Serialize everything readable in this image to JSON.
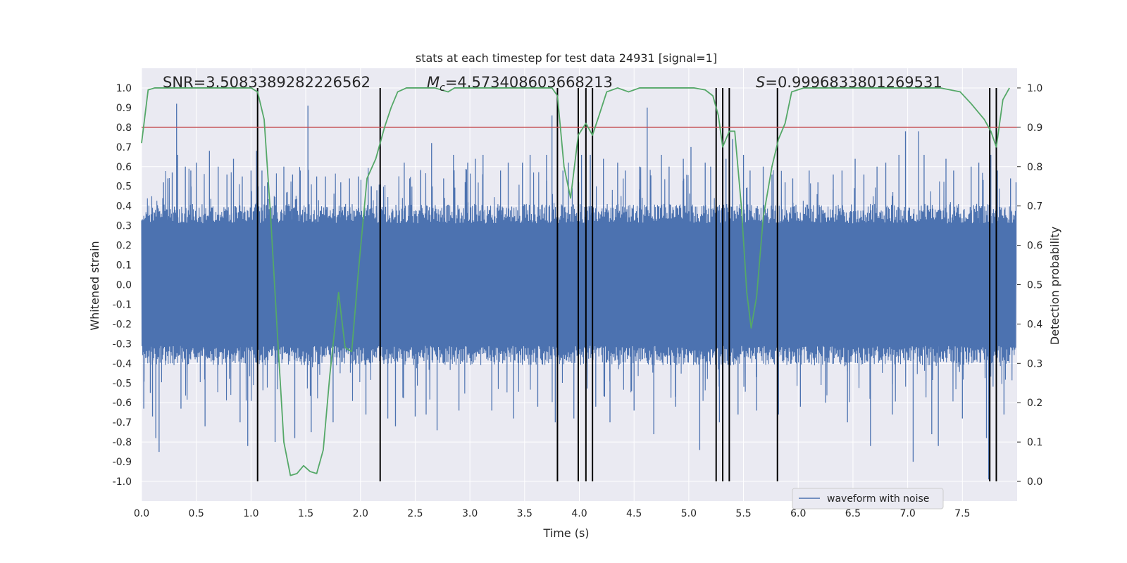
{
  "chart_data": {
    "type": "line",
    "title": "stats at each timestep for test data 24931 [signal=1]",
    "xlabel": "Time (s)",
    "ylabel": "Whitened strain",
    "y2label": "Detection probability",
    "xlim": [
      0.0,
      8.0
    ],
    "ylim": [
      -1.1,
      1.1
    ],
    "y2lim": [
      -0.05,
      1.05
    ],
    "xticks": [
      "0.0",
      "0.5",
      "1.0",
      "1.5",
      "2.0",
      "2.5",
      "3.0",
      "3.5",
      "4.0",
      "4.5",
      "5.0",
      "5.5",
      "6.0",
      "6.5",
      "7.0",
      "7.5"
    ],
    "yticks": [
      "1.0",
      "0.9",
      "0.8",
      "0.7",
      "0.6",
      "0.5",
      "0.4",
      "0.3",
      "0.2",
      "0.1",
      "0.0",
      "-0.1",
      "-0.2",
      "-0.3",
      "-0.4",
      "-0.5",
      "-0.6",
      "-0.7",
      "-0.8",
      "-0.9",
      "-1.0"
    ],
    "y2ticks": [
      "1.0",
      "0.9",
      "0.8",
      "0.7",
      "0.6",
      "0.5",
      "0.4",
      "0.3",
      "0.2",
      "0.1",
      "0.0"
    ],
    "grid": true,
    "legend": {
      "placement": "lower-right",
      "entries": [
        "waveform with noise"
      ]
    },
    "annotations": {
      "snr": "SNR=3.5083389282226562",
      "mc_symbol": "M",
      "mc_sub": "c",
      "mc_value": "=4.573408603668213",
      "s_symbol": "S",
      "s_value": "=0.9996833801269531"
    },
    "threshold": {
      "y2": 0.9,
      "color": "#c44e52"
    },
    "vertical_lines": [
      1.06,
      2.18,
      3.8,
      3.99,
      4.06,
      4.12,
      5.25,
      5.31,
      5.37,
      5.81,
      7.75,
      7.81
    ],
    "series": [
      {
        "name": "waveform with noise",
        "color": "#4c72b0",
        "axis": "left",
        "envelope_typical": 0.38,
        "peaks": [
          [
            0.02,
            -0.63
          ],
          [
            0.08,
            -0.55
          ],
          [
            0.1,
            -0.67
          ],
          [
            0.13,
            -0.78
          ],
          [
            0.16,
            -0.85
          ],
          [
            0.2,
            0.52
          ],
          [
            0.24,
            0.54
          ],
          [
            0.28,
            0.57
          ],
          [
            0.32,
            0.92
          ],
          [
            0.33,
            0.66
          ],
          [
            0.36,
            -0.63
          ],
          [
            0.4,
            0.6
          ],
          [
            0.45,
            0.58
          ],
          [
            0.5,
            0.62
          ],
          [
            0.58,
            -0.72
          ],
          [
            0.62,
            0.68
          ],
          [
            0.7,
            0.6
          ],
          [
            0.78,
            0.56
          ],
          [
            0.84,
            0.64
          ],
          [
            0.9,
            -0.7
          ],
          [
            0.92,
            0.55
          ],
          [
            0.97,
            -0.82
          ],
          [
            1.0,
            0.58
          ],
          [
            1.05,
            0.68
          ],
          [
            1.1,
            0.58
          ],
          [
            1.15,
            0.52
          ],
          [
            1.22,
            -0.8
          ],
          [
            1.3,
            0.6
          ],
          [
            1.38,
            0.56
          ],
          [
            1.4,
            -0.78
          ],
          [
            1.45,
            0.58
          ],
          [
            1.52,
            0.91
          ],
          [
            1.55,
            -0.75
          ],
          [
            1.6,
            0.55
          ],
          [
            1.68,
            0.55
          ],
          [
            1.75,
            -0.7
          ],
          [
            1.82,
            0.52
          ],
          [
            1.9,
            0.54
          ],
          [
            1.98,
            0.55
          ],
          [
            2.05,
            -0.66
          ],
          [
            2.1,
            0.5
          ],
          [
            2.15,
            0.48
          ],
          [
            2.25,
            -0.68
          ],
          [
            2.32,
            -0.72
          ],
          [
            2.4,
            0.62
          ],
          [
            2.45,
            0.54
          ],
          [
            2.5,
            -0.67
          ],
          [
            2.55,
            0.58
          ],
          [
            2.6,
            -0.66
          ],
          [
            2.65,
            0.72
          ],
          [
            2.7,
            -0.74
          ],
          [
            2.76,
            0.54
          ],
          [
            2.85,
            0.66
          ],
          [
            2.9,
            -0.64
          ],
          [
            2.98,
            0.62
          ],
          [
            3.05,
            0.64
          ],
          [
            3.12,
            0.66
          ],
          [
            3.2,
            -0.64
          ],
          [
            3.28,
            0.58
          ],
          [
            3.35,
            0.62
          ],
          [
            3.4,
            -0.68
          ],
          [
            3.48,
            0.62
          ],
          [
            3.55,
            0.66
          ],
          [
            3.62,
            -0.62
          ],
          [
            3.7,
            0.66
          ],
          [
            3.75,
            0.86
          ],
          [
            3.78,
            -0.7
          ],
          [
            3.85,
            0.58
          ],
          [
            3.9,
            0.62
          ],
          [
            3.95,
            -0.68
          ],
          [
            4.02,
            0.66
          ],
          [
            4.1,
            0.66
          ],
          [
            4.15,
            -0.62
          ],
          [
            4.22,
            0.64
          ],
          [
            4.28,
            -0.7
          ],
          [
            4.35,
            0.62
          ],
          [
            4.42,
            0.58
          ],
          [
            4.5,
            -0.64
          ],
          [
            4.55,
            0.6
          ],
          [
            4.62,
            0.9
          ],
          [
            4.68,
            -0.76
          ],
          [
            4.75,
            0.66
          ],
          [
            4.82,
            0.6
          ],
          [
            4.88,
            -0.62
          ],
          [
            4.95,
            0.64
          ],
          [
            5.02,
            0.7
          ],
          [
            5.1,
            -0.84
          ],
          [
            5.15,
            0.62
          ],
          [
            5.2,
            0.6
          ],
          [
            5.25,
            0.64
          ],
          [
            5.28,
            -0.7
          ],
          [
            5.34,
            0.64
          ],
          [
            5.4,
            0.74
          ],
          [
            5.45,
            -0.66
          ],
          [
            5.5,
            0.66
          ],
          [
            5.56,
            0.58
          ],
          [
            5.62,
            -0.64
          ],
          [
            5.68,
            0.6
          ],
          [
            5.76,
            0.56
          ],
          [
            5.82,
            -0.66
          ],
          [
            5.88,
            0.52
          ],
          [
            5.95,
            0.54
          ],
          [
            6.02,
            -0.62
          ],
          [
            6.1,
            0.58
          ],
          [
            6.18,
            0.52
          ],
          [
            6.25,
            -0.6
          ],
          [
            6.32,
            0.56
          ],
          [
            6.4,
            0.58
          ],
          [
            6.45,
            -0.7
          ],
          [
            6.52,
            0.64
          ],
          [
            6.6,
            0.56
          ],
          [
            6.66,
            -0.82
          ],
          [
            6.72,
            0.6
          ],
          [
            6.8,
            0.62
          ],
          [
            6.86,
            -0.66
          ],
          [
            6.92,
            0.66
          ],
          [
            6.98,
            0.78
          ],
          [
            7.05,
            -0.9
          ],
          [
            7.1,
            0.78
          ],
          [
            7.15,
            0.66
          ],
          [
            7.22,
            -0.76
          ],
          [
            7.28,
            -0.82
          ],
          [
            7.35,
            0.64
          ],
          [
            7.42,
            0.58
          ],
          [
            7.5,
            -0.68
          ],
          [
            7.58,
            0.6
          ],
          [
            7.65,
            0.62
          ],
          [
            7.72,
            -0.78
          ],
          [
            7.74,
            -0.99
          ],
          [
            7.76,
            0.66
          ],
          [
            7.82,
            0.58
          ],
          [
            7.88,
            -0.66
          ],
          [
            7.94,
            0.54
          ],
          [
            7.99,
            0.52
          ]
        ]
      },
      {
        "name": "",
        "color": "#55a868",
        "axis": "right",
        "points": [
          [
            0.0,
            0.86
          ],
          [
            0.06,
            0.995
          ],
          [
            0.12,
            1.0
          ],
          [
            0.4,
            1.0
          ],
          [
            0.8,
            1.0
          ],
          [
            1.0,
            1.0
          ],
          [
            1.06,
            0.99
          ],
          [
            1.12,
            0.92
          ],
          [
            1.18,
            0.67
          ],
          [
            1.24,
            0.38
          ],
          [
            1.3,
            0.1
          ],
          [
            1.36,
            0.015
          ],
          [
            1.42,
            0.02
          ],
          [
            1.48,
            0.04
          ],
          [
            1.54,
            0.025
          ],
          [
            1.6,
            0.02
          ],
          [
            1.66,
            0.08
          ],
          [
            1.72,
            0.27
          ],
          [
            1.8,
            0.48
          ],
          [
            1.86,
            0.34
          ],
          [
            1.92,
            0.33
          ],
          [
            1.98,
            0.53
          ],
          [
            2.06,
            0.77
          ],
          [
            2.14,
            0.82
          ],
          [
            2.22,
            0.9
          ],
          [
            2.28,
            0.95
          ],
          [
            2.34,
            0.99
          ],
          [
            2.42,
            1.0
          ],
          [
            2.55,
            1.0
          ],
          [
            2.68,
            1.0
          ],
          [
            2.8,
            0.99
          ],
          [
            2.86,
            1.0
          ],
          [
            3.0,
            1.0
          ],
          [
            3.2,
            1.0
          ],
          [
            3.5,
            1.0
          ],
          [
            3.75,
            1.0
          ],
          [
            3.8,
            0.98
          ],
          [
            3.86,
            0.8
          ],
          [
            3.92,
            0.72
          ],
          [
            3.99,
            0.88
          ],
          [
            4.06,
            0.91
          ],
          [
            4.12,
            0.88
          ],
          [
            4.18,
            0.93
          ],
          [
            4.25,
            0.99
          ],
          [
            4.35,
            1.0
          ],
          [
            4.45,
            0.99
          ],
          [
            4.55,
            1.0
          ],
          [
            4.7,
            1.0
          ],
          [
            4.9,
            1.0
          ],
          [
            5.05,
            1.0
          ],
          [
            5.15,
            0.995
          ],
          [
            5.22,
            0.98
          ],
          [
            5.27,
            0.93
          ],
          [
            5.31,
            0.85
          ],
          [
            5.37,
            0.89
          ],
          [
            5.42,
            0.89
          ],
          [
            5.48,
            0.7
          ],
          [
            5.53,
            0.48
          ],
          [
            5.57,
            0.39
          ],
          [
            5.62,
            0.47
          ],
          [
            5.68,
            0.67
          ],
          [
            5.76,
            0.8
          ],
          [
            5.82,
            0.87
          ],
          [
            5.88,
            0.91
          ],
          [
            5.94,
            0.99
          ],
          [
            6.05,
            1.0
          ],
          [
            6.2,
            1.0
          ],
          [
            6.5,
            1.0
          ],
          [
            7.0,
            1.0
          ],
          [
            7.3,
            1.0
          ],
          [
            7.48,
            0.99
          ],
          [
            7.58,
            0.96
          ],
          [
            7.7,
            0.92
          ],
          [
            7.76,
            0.89
          ],
          [
            7.81,
            0.85
          ],
          [
            7.87,
            0.97
          ],
          [
            7.93,
            1.0
          ]
        ]
      }
    ]
  }
}
